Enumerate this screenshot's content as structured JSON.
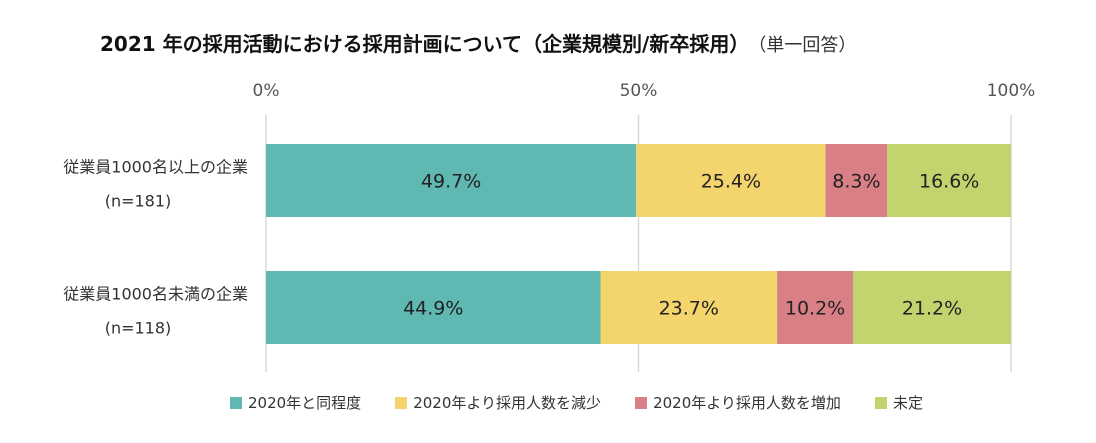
{
  "title": "2021 年の採用活動における採用計画について（企業規模別/新卒採用）",
  "subtitle": "（単一回答）",
  "colors": {
    "same": "#5fb8b2",
    "decrease": "#f4d46c",
    "increase": "#d98087",
    "undecided": "#c3d46e",
    "grid": "#d9d9d9",
    "text": "#333333"
  },
  "chart_data": {
    "type": "bar",
    "orientation": "horizontal",
    "stacked": true,
    "xlim": [
      0,
      100
    ],
    "x_ticks": [
      "0%",
      "50%",
      "100%"
    ],
    "categories": [
      {
        "label": "従業員1000名以上の企業",
        "n": "(n=181)"
      },
      {
        "label": "従業員1000名未満の企業",
        "n": "(n=118)"
      }
    ],
    "series": [
      {
        "name": "2020年と同程度",
        "color_key": "same",
        "values": [
          49.7,
          44.9
        ],
        "labels": [
          "49.7%",
          "44.9%"
        ]
      },
      {
        "name": "2020年より採用人数を減少",
        "color_key": "decrease",
        "values": [
          25.4,
          23.7
        ],
        "labels": [
          "25.4%",
          "23.7%"
        ]
      },
      {
        "name": "2020年より採用人数を増加",
        "color_key": "increase",
        "values": [
          8.3,
          10.2
        ],
        "labels": [
          "8.3%",
          "10.2%"
        ]
      },
      {
        "name": "未定",
        "color_key": "undecided",
        "values": [
          16.6,
          21.2
        ],
        "labels": [
          "16.6%",
          "21.2%"
        ]
      }
    ],
    "legend_position": "bottom",
    "grid": true
  }
}
